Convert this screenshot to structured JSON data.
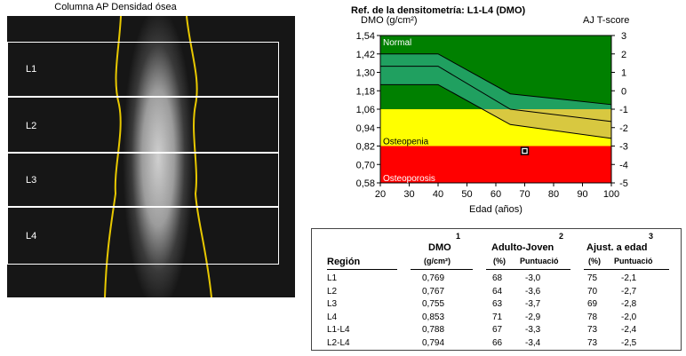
{
  "scan": {
    "title": "Columna AP Densidad ósea",
    "regions": [
      "L1",
      "L2",
      "L3",
      "L4"
    ]
  },
  "chart_data": {
    "type": "area",
    "title": "Ref. de la densitometría: L1-L4 (DMO)",
    "ylabel": "DMO (g/cm²)",
    "y2label": "AJ T-score",
    "xlabel": "Edad (años)",
    "xlim": [
      20,
      100
    ],
    "ylim": [
      0.58,
      1.54
    ],
    "y2lim": [
      -5,
      3
    ],
    "x_ticks": [
      "20",
      "30",
      "40",
      "50",
      "60",
      "70",
      "80",
      "90",
      "100"
    ],
    "y_ticks": [
      "1,54",
      "1,42",
      "1,30",
      "1,18",
      "1,06",
      "0,94",
      "0,82",
      "0,70",
      "0,58"
    ],
    "y2_ticks": [
      "3",
      "2",
      "1",
      "0",
      "-1",
      "-2",
      "-3",
      "-4",
      "-5"
    ],
    "zones": [
      {
        "name": "Normal",
        "from": 1.06,
        "to": 1.54,
        "color": "#008000"
      },
      {
        "name": "Osteopenia",
        "from": 0.82,
        "to": 1.06,
        "color": "#ffff00"
      },
      {
        "name": "Osteoporosis",
        "from": 0.58,
        "to": 0.82,
        "color": "#ff0000"
      }
    ],
    "reference_bands": {
      "x": [
        20,
        40,
        65,
        100
      ],
      "upper": [
        1.42,
        1.42,
        1.16,
        1.09
      ],
      "mean": [
        1.34,
        1.34,
        1.06,
        0.98
      ],
      "lower": [
        1.22,
        1.22,
        0.96,
        0.87
      ]
    },
    "patient_point": {
      "x": 70,
      "y": 0.788
    }
  },
  "table": {
    "col_numbers": [
      "1",
      "2",
      "3"
    ],
    "headers": {
      "region": "Región",
      "dmo": "DMO",
      "dmo_unit": "(g/cm²)",
      "adult": "Adulto-Joven",
      "adult_pct": "(%)",
      "adult_score": "Puntuació",
      "age": "Ajust. a edad",
      "age_pct": "(%)",
      "age_score": "Puntuació"
    },
    "rows": [
      {
        "region": "L1",
        "dmo": "0,769",
        "adult_pct": "68",
        "adult_score": "-3,0",
        "age_pct": "75",
        "age_score": "-2,1"
      },
      {
        "region": "L2",
        "dmo": "0,767",
        "adult_pct": "64",
        "adult_score": "-3,6",
        "age_pct": "70",
        "age_score": "-2,7"
      },
      {
        "region": "L3",
        "dmo": "0,755",
        "adult_pct": "63",
        "adult_score": "-3,7",
        "age_pct": "69",
        "age_score": "-2,8"
      },
      {
        "region": "L4",
        "dmo": "0,853",
        "adult_pct": "71",
        "adult_score": "-2,9",
        "age_pct": "78",
        "age_score": "-2,0"
      },
      {
        "region": "L1-L4",
        "dmo": "0,788",
        "adult_pct": "67",
        "adult_score": "-3,3",
        "age_pct": "73",
        "age_score": "-2,4"
      },
      {
        "region": "L2-L4",
        "dmo": "0,794",
        "adult_pct": "66",
        "adult_score": "-3,4",
        "age_pct": "73",
        "age_score": "-2,5"
      }
    ]
  }
}
